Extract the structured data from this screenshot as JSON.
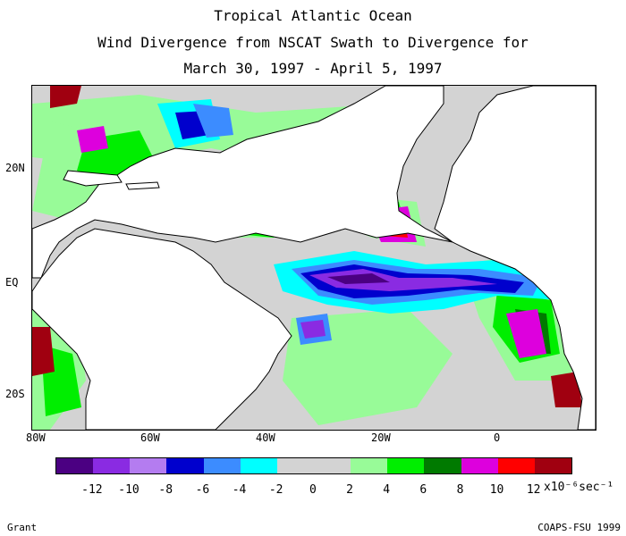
{
  "title": {
    "line1": "Tropical Atlantic Ocean",
    "line2": "Wind Divergence from NSCAT Swath to Divergence for",
    "line3": "March 30, 1997 - April 5, 1997"
  },
  "lat_labels": [
    "20N",
    "EQ",
    "20S"
  ],
  "lon_labels": [
    "80W",
    "60W",
    "40W",
    "20W",
    "0"
  ],
  "colorbar": {
    "colors": [
      "#4b0082",
      "#8a2be2",
      "#b47cf0",
      "#0000cd",
      "#3c8cff",
      "#00ffff",
      "#d3d3d3",
      "#d3d3d3",
      "#98fb98",
      "#00ee00",
      "#007a00",
      "#dd00dd",
      "#ff0000",
      "#a00010"
    ],
    "tick_labels": [
      "-12",
      "-10",
      "-8",
      "-6",
      "-4",
      "-2",
      "0",
      "2",
      "4",
      "6",
      "8",
      "10",
      "12"
    ],
    "units": "x10⁻⁶sec⁻¹"
  },
  "footer": {
    "author": "Grant",
    "credit": "COAPS-FSU 1999"
  }
}
